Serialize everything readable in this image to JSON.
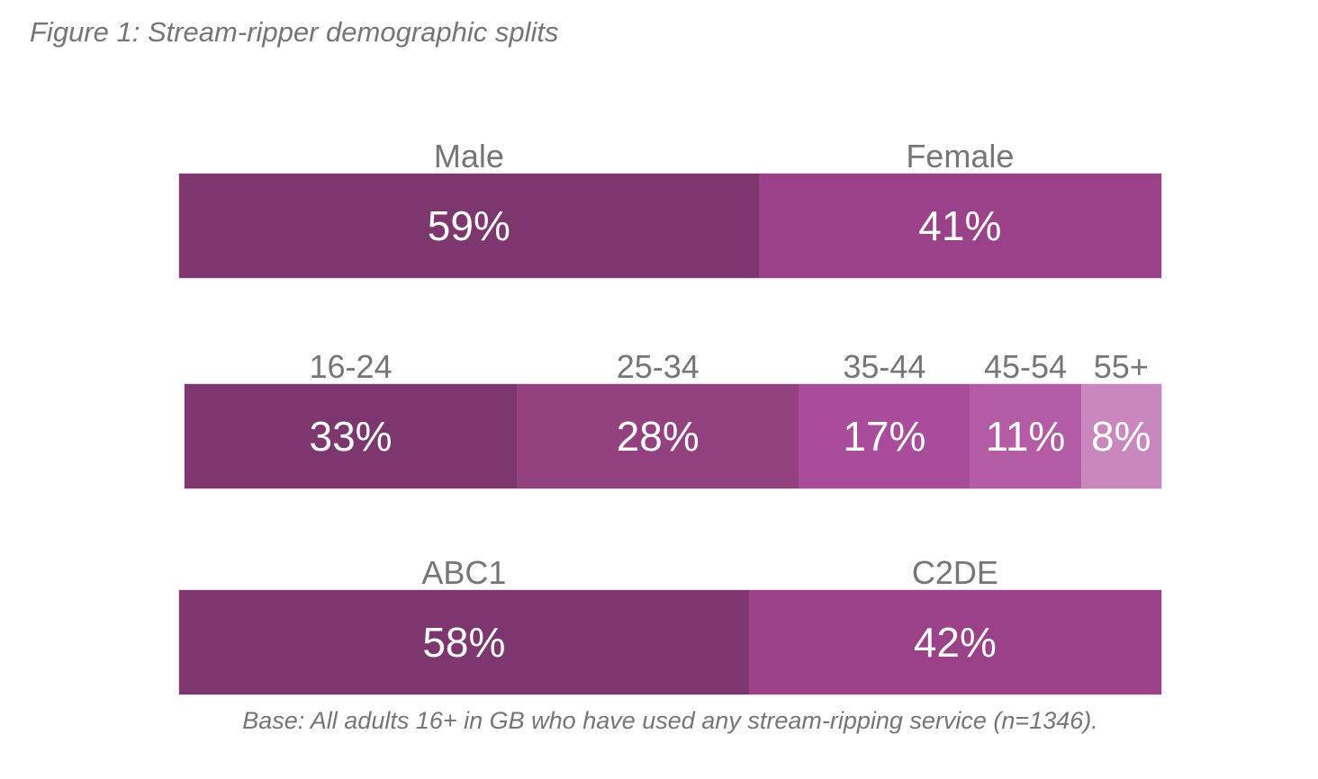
{
  "title": "Figure 1: Stream-ripper demographic splits",
  "base_note": "Base: All adults 16+ in GB who have used any stream-ripping service (n=1346).",
  "styles": {
    "text_color": "#757575",
    "category_label_color": "#767676",
    "value_label_color": "#ffffff",
    "bar_outline_color": "#eddcea"
  },
  "chart_data": [
    {
      "type": "bar",
      "variant": "stacked-horizontal-100pct",
      "name": "gender",
      "categories": [
        "Male",
        "Female"
      ],
      "values": [
        59,
        41
      ],
      "value_labels": [
        "59%",
        "41%"
      ],
      "segment_colors": [
        "#7d366e",
        "#9a4189"
      ],
      "legend_position": "labels-above-segments",
      "grid": false
    },
    {
      "type": "bar",
      "variant": "stacked-horizontal-100pct",
      "name": "age",
      "categories": [
        "16-24",
        "25-34",
        "35-44",
        "45-54",
        "55+"
      ],
      "values": [
        33,
        28,
        17,
        11,
        8
      ],
      "value_labels": [
        "33%",
        "28%",
        "17%",
        "11%",
        "8%"
      ],
      "segment_colors": [
        "#7d366e",
        "#94417f",
        "#a94c9c",
        "#b35ba5",
        "#c987be"
      ],
      "legend_position": "labels-above-segments",
      "grid": false
    },
    {
      "type": "bar",
      "variant": "stacked-horizontal-100pct",
      "name": "social-grade",
      "categories": [
        "ABC1",
        "C2DE"
      ],
      "values": [
        58,
        42
      ],
      "value_labels": [
        "58%",
        "42%"
      ],
      "segment_colors": [
        "#7d366e",
        "#9a4189"
      ],
      "legend_position": "labels-above-segments",
      "grid": false
    }
  ]
}
